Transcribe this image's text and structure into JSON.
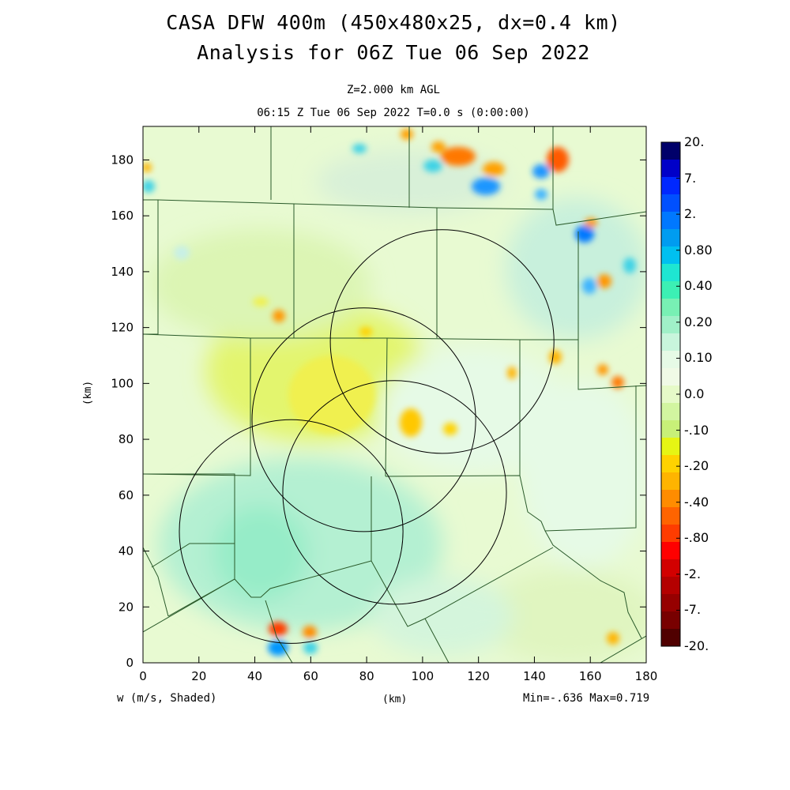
{
  "title": {
    "line1": "CASA DFW 400m (450x480x25, dx=0.4 km)",
    "line2": "Analysis for 06Z Tue 06 Sep 2022"
  },
  "subtitle": {
    "level": "Z=2.000 km AGL",
    "time": "06:15 Z Tue 06 Sep 2022   T=0.0 s (0:00:00)"
  },
  "axes": {
    "xlabel": "(km)",
    "ylabel": "(km)",
    "xticks": [
      "0",
      "20",
      "40",
      "60",
      "80",
      "100",
      "120",
      "140",
      "160",
      "180"
    ],
    "yticks": [
      "0",
      "20",
      "40",
      "60",
      "80",
      "100",
      "120",
      "140",
      "160",
      "180"
    ],
    "xlim": [
      0,
      180
    ],
    "ylim": [
      0,
      192
    ]
  },
  "field": {
    "variable_label": "w (m/s, Shaded)",
    "minmax": "Min=-.636 Max=0.719"
  },
  "colorbar": {
    "labels": [
      "20.",
      "7.",
      "2.",
      "0.80",
      "0.40",
      "0.20",
      "0.10",
      "0.0",
      "-.10",
      "-.20",
      "-.40",
      "-.80",
      "-2.",
      "-7.",
      "-20."
    ],
    "colors": [
      "#00006a",
      "#0000c8",
      "#0028ff",
      "#0050ff",
      "#0078ff",
      "#009cf0",
      "#00c0f0",
      "#1ee6d2",
      "#3cf0b4",
      "#78f0b4",
      "#a0f0c8",
      "#c8f5dc",
      "#e6fae6",
      "#f0fae6",
      "#e6fac8",
      "#d2f5a0",
      "#c8f078",
      "#e6f514",
      "#ffd200",
      "#ffb400",
      "#ff8c00",
      "#ff6400",
      "#ff3c00",
      "#ff0000",
      "#d20000",
      "#b40000",
      "#960000",
      "#780000",
      "#500000"
    ]
  },
  "chart_data": {
    "type": "heatmap",
    "title": "CASA DFW 400m (450x480x25, dx=0.4 km) Analysis for 06Z Tue 06 Sep 2022",
    "xlabel": "(km)",
    "ylabel": "(km)",
    "xlim": [
      0,
      180
    ],
    "ylim": [
      0,
      192
    ],
    "field_min": -0.636,
    "field_max": 0.719,
    "radar_range_circles": [
      {
        "center": [
          107,
          115
        ],
        "radius": 40
      },
      {
        "center": [
          79,
          87
        ],
        "radius": 40
      },
      {
        "center": [
          90,
          61
        ],
        "radius": 40
      },
      {
        "center": [
          53,
          47
        ],
        "radius": 40
      }
    ],
    "features": [
      {
        "x": 58,
        "y": 98,
        "value": -0.15,
        "kind": "broad weak downdraft region"
      },
      {
        "x": 112,
        "y": 180,
        "value": -0.4
      },
      {
        "x": 148,
        "y": 180,
        "value": -0.6
      },
      {
        "x": 149,
        "y": 175,
        "value": 0.5
      },
      {
        "x": 156,
        "y": 152,
        "value": 0.4
      },
      {
        "x": 160,
        "y": 135,
        "value": -0.4
      },
      {
        "x": 169,
        "y": 101,
        "value": -0.4
      },
      {
        "x": 49,
        "y": 12,
        "value": -0.5
      },
      {
        "x": 50,
        "y": 5,
        "value": 0.6
      },
      {
        "x": 40,
        "y": 45,
        "value": 0.2,
        "kind": "broad weak updraft region"
      }
    ]
  }
}
